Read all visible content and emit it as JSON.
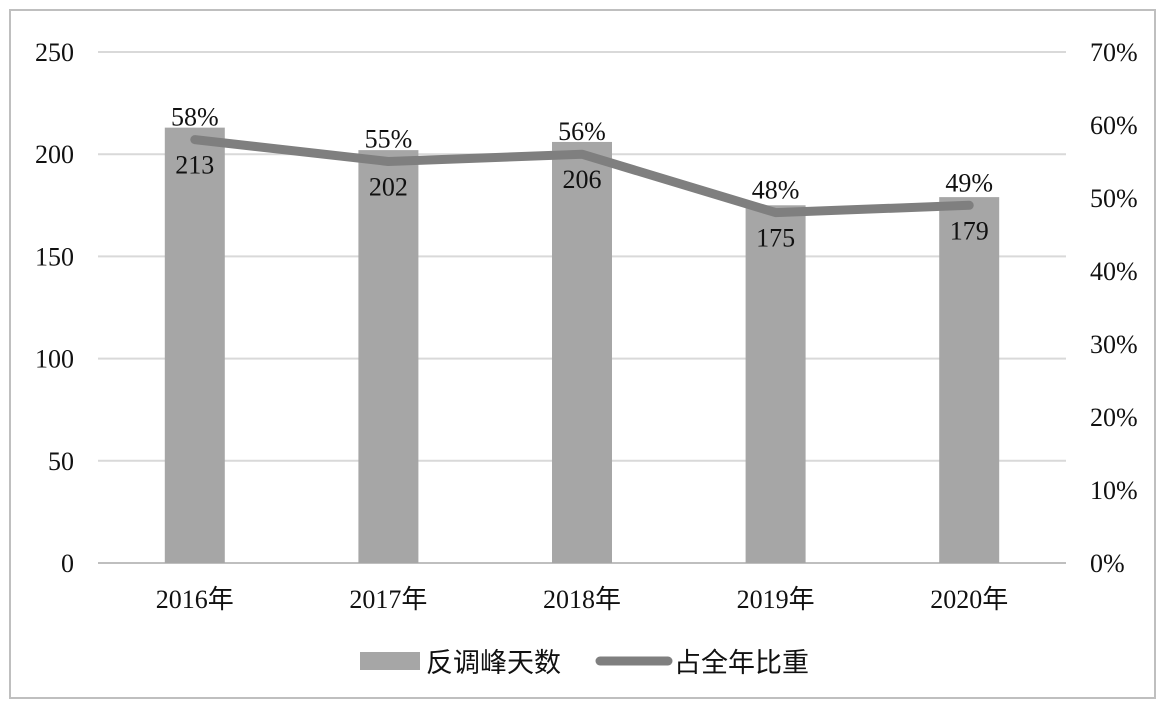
{
  "chart_data": {
    "type": "bar",
    "categories": [
      "2016年",
      "2017年",
      "2018年",
      "2019年",
      "2020年"
    ],
    "series": [
      {
        "name": "反调峰天数",
        "type": "bar",
        "axis": "left",
        "color": "#a6a6a6",
        "values": [
          213,
          202,
          206,
          175,
          179
        ],
        "labels": [
          "213",
          "202",
          "206",
          "175",
          "179"
        ]
      },
      {
        "name": "占全年比重",
        "type": "line",
        "axis": "right",
        "color": "#7f7f7f",
        "values": [
          0.58,
          0.55,
          0.56,
          0.48,
          0.49
        ],
        "labels": [
          "58%",
          "55%",
          "56%",
          "48%",
          "49%"
        ]
      }
    ],
    "y_left": {
      "min": 0,
      "max": 250,
      "step": 50,
      "ticks": [
        "0",
        "50",
        "100",
        "150",
        "200",
        "250"
      ]
    },
    "y_right": {
      "min": 0,
      "max": 0.7,
      "step": 0.1,
      "ticks": [
        "0%",
        "10%",
        "20%",
        "30%",
        "40%",
        "50%",
        "60%",
        "70%"
      ]
    },
    "grid": true,
    "legend_position": "bottom"
  }
}
